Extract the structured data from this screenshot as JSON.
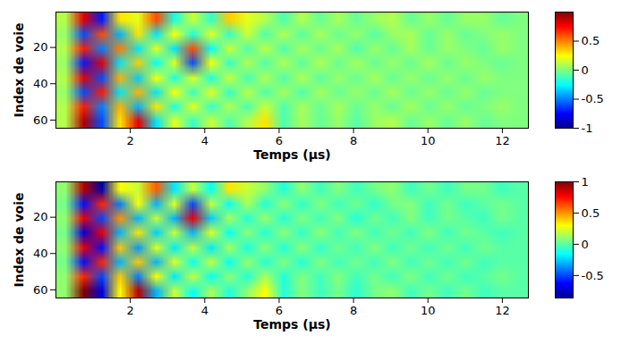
{
  "chart_data": [
    {
      "type": "heatmap",
      "xlabel": "Temps (µs)",
      "ylabel": "Index de voie",
      "xlim": [
        0,
        12.7
      ],
      "ylim": [
        0.5,
        64.5
      ],
      "xticks": [
        2,
        4,
        6,
        8,
        10,
        12
      ],
      "yticks": [
        20,
        40,
        60
      ],
      "clim": [
        -1,
        1
      ],
      "cticks": [
        -1,
        -0.5,
        0,
        0.5
      ],
      "cells": [
        [
          0.1,
          0.8,
          -0.7,
          0.3,
          0.2,
          0.6,
          -0.2,
          0.15,
          -0.15,
          0.35,
          0.2,
          0.1,
          -0.1,
          0.1,
          -0.05,
          0.08,
          -0.05,
          0.05,
          0.1,
          -0.05,
          0.05,
          -0.05,
          0.05,
          0.05,
          -0.05,
          0
        ],
        [
          0.05,
          -0.6,
          0.6,
          -0.4,
          0.3,
          -0.3,
          0.25,
          -0.2,
          0.2,
          -0.15,
          0.15,
          -0.1,
          0.1,
          -0.08,
          0.08,
          -0.05,
          0.05,
          -0.08,
          0.05,
          0.08,
          -0.05,
          0.05,
          -0.05,
          0,
          0.05,
          0
        ],
        [
          0.1,
          0.7,
          -0.5,
          0.5,
          -0.3,
          0.2,
          -0.3,
          0.6,
          -0.25,
          0.15,
          -0.1,
          0.12,
          -0.1,
          0.08,
          -0.05,
          0.08,
          -0.1,
          0.05,
          -0.05,
          0.08,
          -0.05,
          0.05,
          0,
          -0.05,
          0.05,
          0
        ],
        [
          0.05,
          -0.7,
          0.8,
          -0.3,
          0.35,
          -0.25,
          0.2,
          -0.6,
          0.25,
          -0.15,
          0.1,
          -0.1,
          0.1,
          -0.08,
          0.1,
          -0.05,
          0.08,
          -0.05,
          0.05,
          -0.05,
          0.08,
          -0.05,
          0.05,
          0,
          -0.05,
          0
        ],
        [
          0.1,
          0.8,
          -0.6,
          0.4,
          -0.35,
          0.25,
          -0.2,
          0.2,
          -0.2,
          0.15,
          -0.12,
          0.1,
          -0.1,
          0.1,
          -0.08,
          0.05,
          -0.05,
          0.08,
          -0.05,
          0.05,
          -0.05,
          0.05,
          -0.05,
          0.05,
          0,
          0
        ],
        [
          0.05,
          -0.6,
          0.7,
          -0.3,
          0.4,
          -0.3,
          0.25,
          -0.15,
          0.2,
          -0.15,
          0.12,
          -0.1,
          0.08,
          -0.1,
          0.08,
          -0.05,
          0.05,
          -0.05,
          0.08,
          -0.05,
          0.05,
          -0.05,
          0.05,
          -0.05,
          0,
          0
        ],
        [
          0.1,
          0.7,
          -0.5,
          0.4,
          -0.4,
          0.3,
          -0.2,
          0.2,
          -0.15,
          0.1,
          -0.1,
          0.15,
          -0.1,
          0.08,
          -0.05,
          0.08,
          -0.05,
          0.05,
          -0.05,
          0.08,
          -0.05,
          0.05,
          -0.05,
          0,
          0.05,
          0
        ],
        [
          0.1,
          0.9,
          -0.6,
          0.3,
          0.8,
          -0.3,
          0.2,
          -0.15,
          0.15,
          -0.1,
          0.1,
          0.3,
          -0.1,
          0.08,
          -0.05,
          0.05,
          -0.08,
          0.05,
          0.1,
          -0.05,
          0.05,
          -0.05,
          0.05,
          -0.05,
          0,
          0
        ]
      ]
    },
    {
      "type": "heatmap",
      "xlabel": "Temps (µs)",
      "ylabel": "Index de voie",
      "xlim": [
        0,
        12.7
      ],
      "ylim": [
        0.5,
        64.5
      ],
      "xticks": [
        2,
        4,
        6,
        8,
        10,
        12
      ],
      "yticks": [
        20,
        40,
        60
      ],
      "clim": [
        -0.86,
        1
      ],
      "cticks": [
        -0.5,
        0,
        0.5,
        1
      ],
      "cells": [
        [
          0.1,
          0.9,
          -0.8,
          0.3,
          0.2,
          0.6,
          -0.2,
          0.2,
          -0.15,
          0.35,
          0.2,
          0.1,
          -0.1,
          0.1,
          -0.05,
          0.08,
          -0.05,
          0.05,
          0.1,
          -0.05,
          0.05,
          -0.05,
          0.05,
          0.05,
          -0.05,
          0
        ],
        [
          0.05,
          -0.6,
          0.7,
          -0.4,
          0.3,
          -0.3,
          0.25,
          -0.5,
          0.2,
          -0.15,
          0.15,
          -0.1,
          0.1,
          -0.08,
          0.08,
          -0.05,
          0.05,
          -0.08,
          0.05,
          0.08,
          -0.05,
          0.05,
          -0.05,
          0,
          0.05,
          0
        ],
        [
          0.1,
          0.8,
          -0.5,
          0.5,
          -0.3,
          0.2,
          -0.3,
          0.8,
          -0.25,
          0.15,
          -0.1,
          0.12,
          -0.1,
          0.08,
          -0.05,
          0.08,
          -0.1,
          0.05,
          -0.05,
          0.08,
          -0.05,
          0.05,
          0,
          -0.05,
          0.05,
          0
        ],
        [
          0.05,
          -0.7,
          0.8,
          -0.3,
          0.35,
          -0.25,
          0.2,
          -0.3,
          0.25,
          -0.15,
          0.1,
          -0.1,
          0.1,
          -0.08,
          0.1,
          -0.05,
          0.08,
          -0.05,
          0.05,
          -0.05,
          0.08,
          -0.05,
          0.05,
          0,
          -0.05,
          0
        ],
        [
          0.1,
          0.8,
          -0.6,
          0.4,
          -0.35,
          0.25,
          -0.2,
          0.2,
          -0.2,
          0.15,
          -0.12,
          0.1,
          -0.1,
          0.1,
          -0.08,
          0.05,
          -0.05,
          0.08,
          -0.05,
          0.05,
          -0.05,
          0.05,
          -0.05,
          0.05,
          0,
          0
        ],
        [
          0.05,
          -0.6,
          0.7,
          -0.3,
          0.4,
          -0.3,
          0.25,
          -0.15,
          0.2,
          -0.15,
          0.12,
          -0.1,
          0.08,
          -0.1,
          0.08,
          -0.05,
          0.05,
          -0.05,
          0.08,
          -0.05,
          0.05,
          -0.05,
          0.05,
          -0.05,
          0,
          0
        ],
        [
          0.1,
          0.7,
          -0.5,
          0.4,
          -0.4,
          0.3,
          -0.2,
          0.2,
          -0.15,
          0.1,
          -0.1,
          0.15,
          -0.1,
          0.08,
          -0.05,
          0.08,
          -0.05,
          0.05,
          -0.05,
          0.08,
          -0.05,
          0.05,
          -0.05,
          0,
          0.05,
          0
        ],
        [
          0.1,
          1.0,
          -0.7,
          0.3,
          0.9,
          -0.3,
          0.2,
          -0.15,
          0.15,
          -0.1,
          0.1,
          0.3,
          -0.1,
          0.08,
          -0.05,
          0.05,
          -0.08,
          0.05,
          0.1,
          -0.05,
          0.05,
          -0.05,
          0.05,
          -0.05,
          0,
          0
        ]
      ]
    }
  ]
}
